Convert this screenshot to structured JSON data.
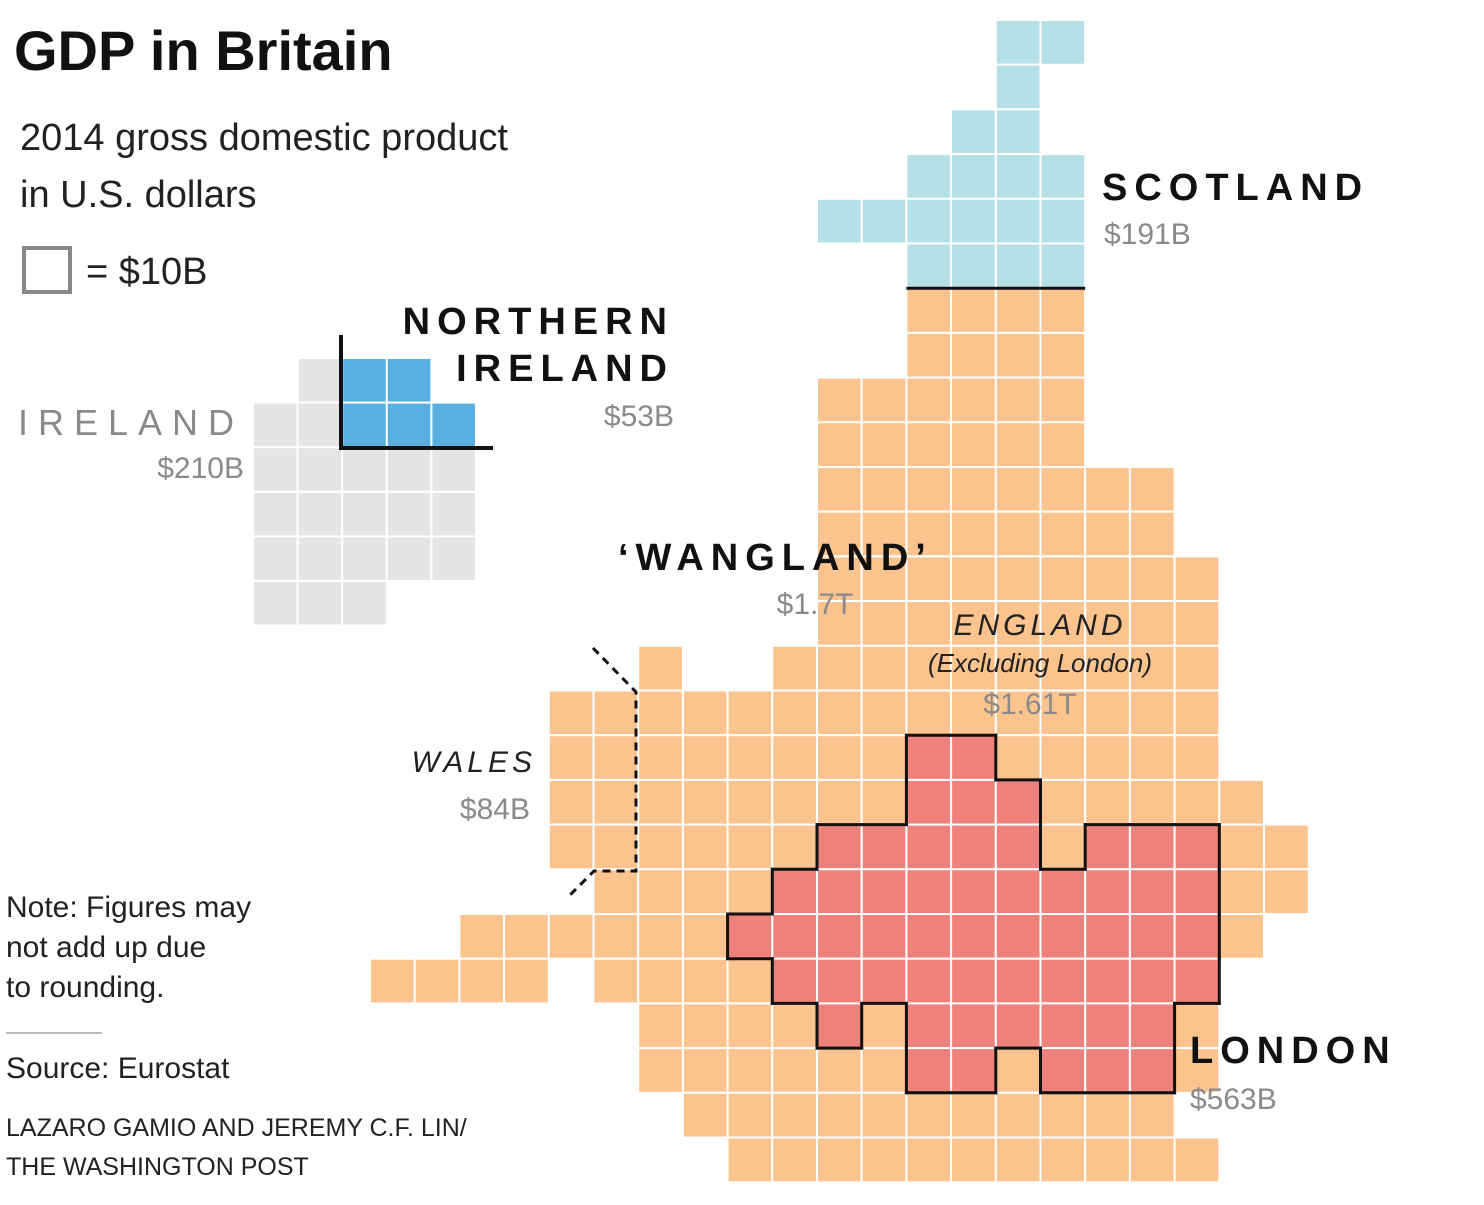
{
  "header": {
    "title": "GDP in Britain",
    "subtitle": [
      "2014 gross domestic product",
      "in U.S. dollars"
    ],
    "legend": "= $10B"
  },
  "regions": {
    "scotland": {
      "name": "SCOTLAND",
      "value": "$191B"
    },
    "northern_ireland": {
      "name": [
        "NORTHERN",
        "IRELAND"
      ],
      "value": "$53B"
    },
    "ireland": {
      "name": "IRELAND",
      "value": "$210B"
    },
    "wangland": {
      "name": "‘WANGLAND’",
      "value": "$1.7T"
    },
    "england": {
      "name": "ENGLAND",
      "note": "(Excluding London)",
      "value": "$1.61T"
    },
    "wales": {
      "name": "WALES",
      "value": "$84B"
    },
    "london": {
      "name": "LONDON",
      "value": "$563B"
    }
  },
  "footer": {
    "note": [
      "Note: Figures may",
      "not add up due",
      "to rounding."
    ],
    "source": "Source: Eurostat",
    "credit": [
      "LAZARO GAMIO AND JEREMY C.F. LIN/",
      "THE WASHINGTON POST"
    ]
  }
}
